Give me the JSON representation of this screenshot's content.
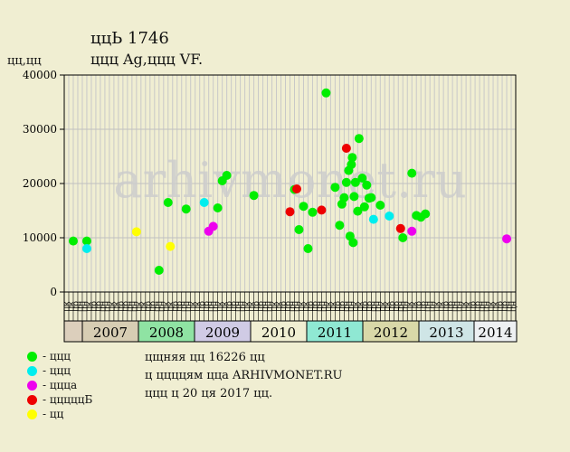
{
  "header": {
    "title": "ццЬ 1746",
    "subtitle": "ццц Ag,ццц VF.",
    "ylabel": "цц,цц"
  },
  "watermark": "arhivmonet.ru",
  "legend": [
    {
      "label": "- ццц",
      "color": "#00ee00"
    },
    {
      "label": "- ццц",
      "color": "#00eeee"
    },
    {
      "label": "- ццца",
      "color": "#ee00ee"
    },
    {
      "label": "- цццццБ",
      "color": "#ee0000"
    },
    {
      "label": "- цц",
      "color": "#ffff00"
    }
  ],
  "info": [
    "цщняя цц 16226 цц",
    "ц ццццям цца ARHIVMONET.RU",
    "ццц ц 20 ця 2017 цц."
  ],
  "chart_data": {
    "type": "scatter",
    "title": "ццЬ 1746",
    "subtitle": "ццц Ag,ццц VF.",
    "ylabel": "цц,цц",
    "ylim": [
      0,
      40000
    ],
    "yticks": [
      0,
      10000,
      20000,
      30000,
      40000
    ],
    "grid": true,
    "month_labels": [
      "цк",
      "цк",
      "цр",
      "цн",
      "цн",
      "цк",
      "цр",
      "цр",
      "цн",
      "цн",
      "цк",
      "цк",
      "цр",
      "цр",
      "цн",
      "цн",
      "цк",
      "цк",
      "цр",
      "цр",
      "цн",
      "цн",
      "цк",
      "цк",
      "цр",
      "цр",
      "цн",
      "цн",
      "цк",
      "цк",
      "цр",
      "цр",
      "цн",
      "цн",
      "цк",
      "цк",
      "цр",
      "цр",
      "цн",
      "цн",
      "цк",
      "цк",
      "цр",
      "цр",
      "цн",
      "цн",
      "цк",
      "цк",
      "цр",
      "цр",
      "цн",
      "цн",
      "цк",
      "цк",
      "цр",
      "цр",
      "цн",
      "цн",
      "цк",
      "цк",
      "цр",
      "цр",
      "цн",
      "цн",
      "цк",
      "цк",
      "цр",
      "цр",
      "цн",
      "цн",
      "цк",
      "цк",
      "цр",
      "цр",
      "цн",
      "цн",
      "цк",
      "цк",
      "цр",
      "цр",
      "цн",
      "цн",
      "цк",
      "цк",
      "цр",
      "цр",
      "цн",
      "цн",
      "цк",
      "цк",
      "цр",
      "цр",
      "цн",
      "цн",
      "цк",
      "цк",
      "цр",
      "цр",
      "цн",
      "цн"
    ],
    "years": [
      {
        "label": "",
        "color": "#dccfbc"
      },
      {
        "label": "2007",
        "color": "#d7cdb3"
      },
      {
        "label": "2008",
        "color": "#8fe3a3"
      },
      {
        "label": "2009",
        "color": "#d0cbe5"
      },
      {
        "label": "2010",
        "color": "#f0eed2"
      },
      {
        "label": "2011",
        "color": "#8fe8d3"
      },
      {
        "label": "2012",
        "color": "#d9d8a8"
      },
      {
        "label": "2013",
        "color": "#cfe5e6"
      },
      {
        "label": "2014",
        "color": "#eef0f2"
      }
    ],
    "series": [
      {
        "name": "ццц",
        "color": "#00ee00",
        "points": [
          [
            0.02,
            9400
          ],
          [
            0.05,
            9400
          ],
          [
            0.21,
            4000
          ],
          [
            0.23,
            16500
          ],
          [
            0.27,
            15300
          ],
          [
            0.34,
            15500
          ],
          [
            0.35,
            20500
          ],
          [
            0.36,
            21500
          ],
          [
            0.42,
            17800
          ],
          [
            0.52,
            11500
          ],
          [
            0.51,
            18900
          ],
          [
            0.53,
            15800
          ],
          [
            0.54,
            8000
          ],
          [
            0.55,
            14700
          ],
          [
            0.58,
            36700
          ],
          [
            0.6,
            19300
          ],
          [
            0.61,
            12300
          ],
          [
            0.615,
            16200
          ],
          [
            0.62,
            17400
          ],
          [
            0.625,
            20200
          ],
          [
            0.63,
            22400
          ],
          [
            0.633,
            10300
          ],
          [
            0.636,
            23500
          ],
          [
            0.638,
            24800
          ],
          [
            0.64,
            9100
          ],
          [
            0.642,
            17600
          ],
          [
            0.645,
            20200
          ],
          [
            0.65,
            14900
          ],
          [
            0.653,
            28300
          ],
          [
            0.66,
            21000
          ],
          [
            0.665,
            15700
          ],
          [
            0.67,
            19700
          ],
          [
            0.675,
            17300
          ],
          [
            0.68,
            17400
          ],
          [
            0.7,
            16000
          ],
          [
            0.75,
            10000
          ],
          [
            0.77,
            21900
          ],
          [
            0.78,
            14100
          ],
          [
            0.79,
            13800
          ],
          [
            0.8,
            14400
          ]
        ]
      },
      {
        "name": "ццц",
        "color": "#00eeee",
        "points": [
          [
            0.05,
            8000
          ],
          [
            0.31,
            16500
          ],
          [
            0.685,
            13400
          ],
          [
            0.72,
            14000
          ]
        ]
      },
      {
        "name": "ццца",
        "color": "#ee00ee",
        "points": [
          [
            0.32,
            11200
          ],
          [
            0.33,
            12100
          ],
          [
            0.77,
            11200
          ],
          [
            0.98,
            9800
          ]
        ]
      },
      {
        "name": "цццццБ",
        "color": "#ee0000",
        "points": [
          [
            0.5,
            14800
          ],
          [
            0.515,
            19000
          ],
          [
            0.57,
            15100
          ],
          [
            0.625,
            26500
          ],
          [
            0.745,
            11700
          ]
        ]
      },
      {
        "name": "цц",
        "color": "#ffff00",
        "points": [
          [
            0.16,
            11100
          ],
          [
            0.235,
            8400
          ]
        ]
      }
    ]
  }
}
